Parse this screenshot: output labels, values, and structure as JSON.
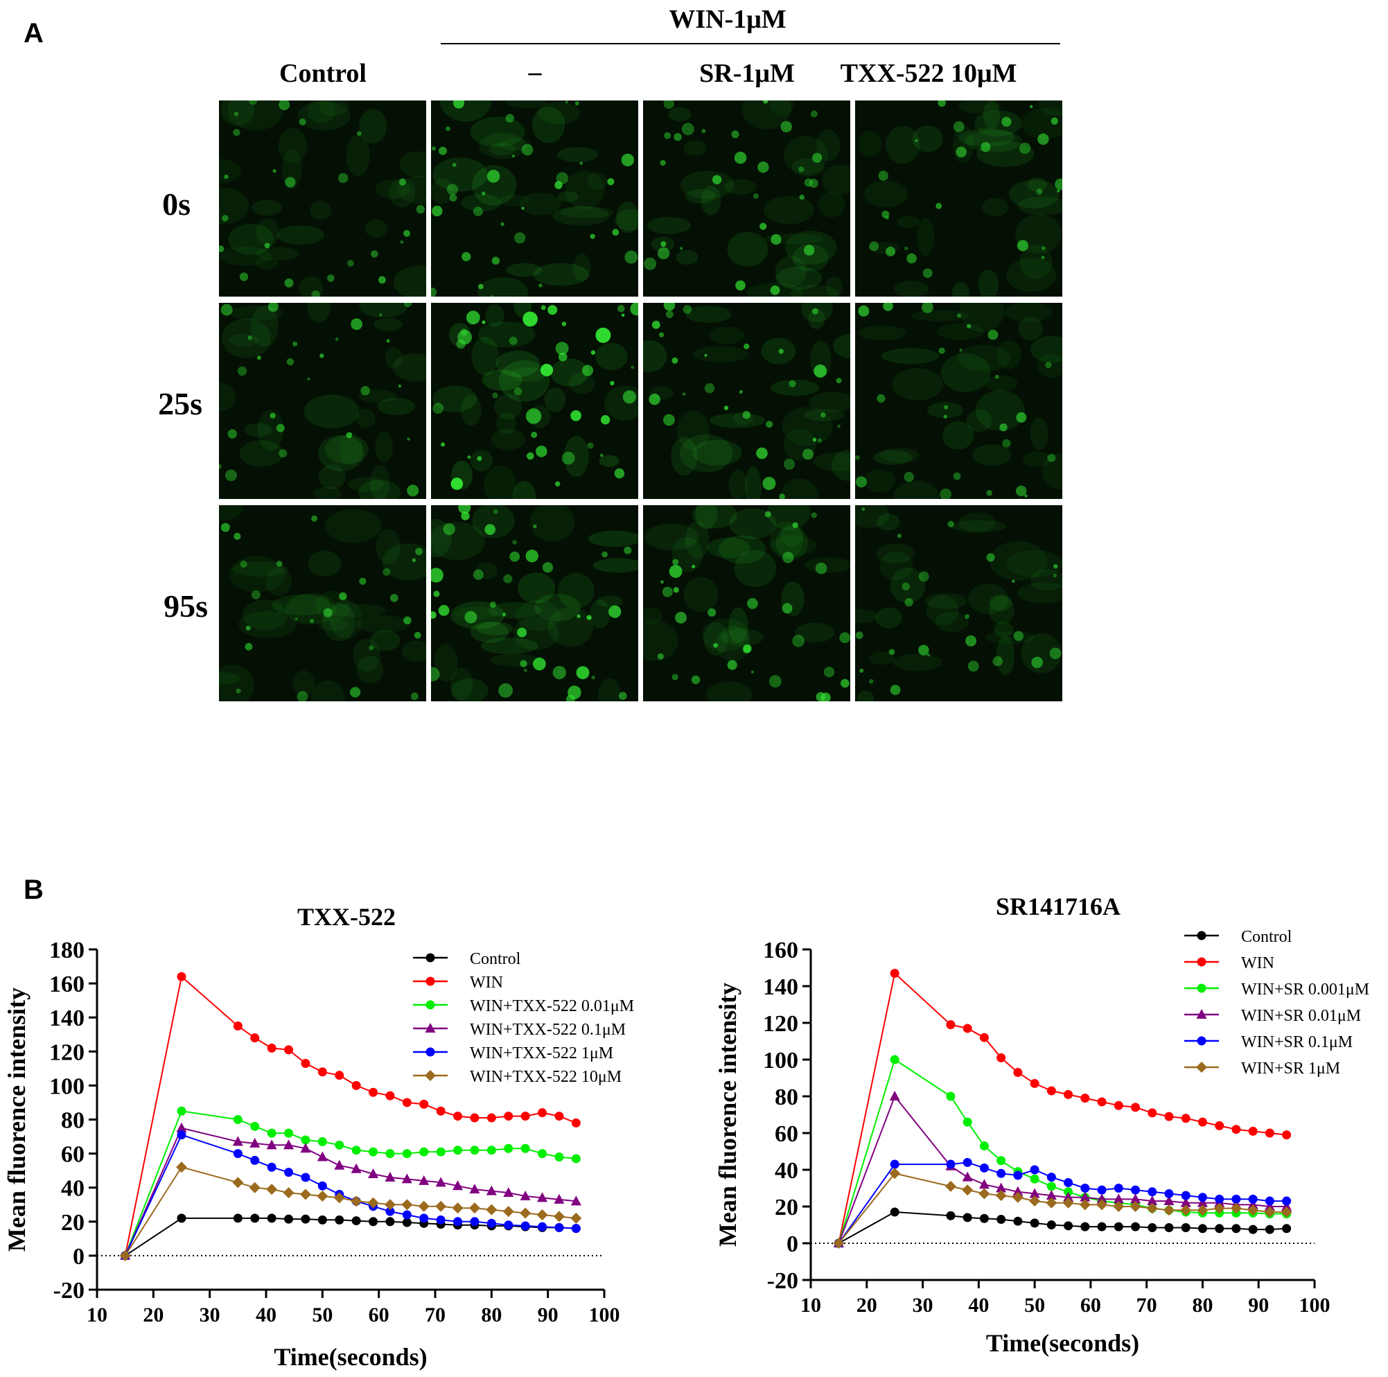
{
  "panel_a": {
    "letter": "A",
    "group_label": "WIN-1μM",
    "columns": [
      "Control",
      "–",
      "SR-1μM",
      "TXX-522 10μM"
    ],
    "rows": [
      "0s",
      "25s",
      "95s"
    ],
    "tile_color": "#33e833",
    "brightness": [
      [
        0.45,
        0.75,
        0.6,
        0.5
      ],
      [
        0.5,
        1.0,
        0.7,
        0.5
      ],
      [
        0.45,
        0.85,
        0.65,
        0.45
      ]
    ]
  },
  "panel_b": {
    "letter": "B"
  },
  "chart_data": [
    {
      "type": "line",
      "title": "TXX-522",
      "xlabel": "Time(seconds)",
      "ylabel": "Mean fluorence intensity",
      "xlim": [
        10,
        100
      ],
      "ylim": [
        -20,
        180
      ],
      "xticks": [
        10,
        20,
        30,
        40,
        50,
        60,
        70,
        80,
        90,
        100
      ],
      "yticks": [
        -20,
        0,
        20,
        40,
        60,
        80,
        100,
        120,
        140,
        160,
        180
      ],
      "baseline": 0,
      "legend_position": "top-right",
      "series": [
        {
          "name": "Control",
          "color": "#000000",
          "marker": "circle",
          "x": [
            15,
            25,
            35,
            38,
            41,
            44,
            47,
            50,
            53,
            56,
            59,
            62,
            65,
            68,
            71,
            74,
            77,
            80,
            83,
            86,
            89,
            92,
            95
          ],
          "y": [
            0,
            22,
            22,
            22,
            22,
            21.5,
            21.5,
            21,
            21,
            20.5,
            20,
            20,
            19.5,
            19,
            18.5,
            18,
            18,
            17.5,
            17.5,
            17,
            16.5,
            16.5,
            16
          ]
        },
        {
          "name": "WIN",
          "color": "#ff0000",
          "marker": "circle",
          "x": [
            15,
            25,
            35,
            38,
            41,
            44,
            47,
            50,
            53,
            56,
            59,
            62,
            65,
            68,
            71,
            74,
            77,
            80,
            83,
            86,
            89,
            92,
            95
          ],
          "y": [
            0,
            164,
            135,
            128,
            122,
            121,
            113,
            108,
            106,
            100,
            96,
            94,
            90,
            89,
            85,
            82,
            81,
            81,
            82,
            82,
            84,
            82,
            78
          ]
        },
        {
          "name": "WIN+TXX-522 0.01μM",
          "color": "#00ee00",
          "marker": "circle",
          "x": [
            15,
            25,
            35,
            38,
            41,
            44,
            47,
            50,
            53,
            56,
            59,
            62,
            65,
            68,
            71,
            74,
            77,
            80,
            83,
            86,
            89,
            92,
            95
          ],
          "y": [
            0,
            85,
            80,
            76,
            72,
            72,
            68,
            67,
            65,
            62,
            61,
            60,
            60,
            61,
            61,
            62,
            62,
            62,
            63,
            63,
            60,
            58,
            57
          ]
        },
        {
          "name": "WIN+TXX-522 0.1μM",
          "color": "#800080",
          "marker": "triangle",
          "x": [
            15,
            25,
            35,
            38,
            41,
            44,
            47,
            50,
            53,
            56,
            59,
            62,
            65,
            68,
            71,
            74,
            77,
            80,
            83,
            86,
            89,
            92,
            95
          ],
          "y": [
            0,
            75,
            67,
            66,
            65,
            65,
            63,
            58,
            53,
            51,
            48,
            46,
            45,
            44,
            43,
            41,
            39,
            38,
            37,
            35,
            34,
            33,
            32
          ]
        },
        {
          "name": "WIN+TXX-522 1μM",
          "color": "#0000ff",
          "marker": "circle",
          "x": [
            15,
            25,
            35,
            38,
            41,
            44,
            47,
            50,
            53,
            56,
            59,
            62,
            65,
            68,
            71,
            74,
            77,
            80,
            83,
            86,
            89,
            92,
            95
          ],
          "y": [
            0,
            71,
            60,
            56,
            52,
            49,
            46,
            41,
            36,
            32,
            29,
            26,
            24,
            22,
            21,
            20,
            20,
            19,
            18,
            17.5,
            17,
            16.5,
            16
          ]
        },
        {
          "name": "WIN+TXX-522 10μM",
          "color": "#9b6a1e",
          "marker": "diamond",
          "x": [
            15,
            25,
            35,
            38,
            41,
            44,
            47,
            50,
            53,
            56,
            59,
            62,
            65,
            68,
            71,
            74,
            77,
            80,
            83,
            86,
            89,
            92,
            95
          ],
          "y": [
            0,
            52,
            43,
            40,
            39,
            37,
            36,
            35,
            34,
            32,
            31,
            30,
            30,
            29,
            29,
            28,
            28,
            27,
            26,
            25,
            24,
            23,
            22
          ]
        }
      ]
    },
    {
      "type": "line",
      "title": "SR141716A",
      "xlabel": "Time(seconds)",
      "ylabel": "Mean fluorence intensity",
      "xlim": [
        10,
        100
      ],
      "ylim": [
        -20,
        160
      ],
      "xticks": [
        10,
        20,
        30,
        40,
        50,
        60,
        70,
        80,
        90,
        100
      ],
      "yticks": [
        -20,
        0,
        20,
        40,
        60,
        80,
        100,
        120,
        140,
        160
      ],
      "baseline": 0,
      "legend_position": "top-right",
      "series": [
        {
          "name": "Control",
          "color": "#000000",
          "marker": "circle",
          "x": [
            15,
            25,
            35,
            38,
            41,
            44,
            47,
            50,
            53,
            56,
            59,
            62,
            65,
            68,
            71,
            74,
            77,
            80,
            83,
            86,
            89,
            92,
            95
          ],
          "y": [
            0,
            17,
            15,
            14,
            13.5,
            13,
            12,
            11,
            10,
            9.5,
            9,
            9,
            9,
            9,
            8.5,
            8.5,
            8.5,
            8,
            8,
            8,
            7.5,
            7.5,
            8
          ]
        },
        {
          "name": "WIN",
          "color": "#ff0000",
          "marker": "circle",
          "x": [
            15,
            25,
            35,
            38,
            41,
            44,
            47,
            50,
            53,
            56,
            59,
            62,
            65,
            68,
            71,
            74,
            77,
            80,
            83,
            86,
            89,
            92,
            95
          ],
          "y": [
            0,
            147,
            119,
            117,
            112,
            101,
            93,
            87,
            83,
            81,
            79,
            77,
            75,
            74,
            71,
            69,
            68,
            66,
            64,
            62,
            61,
            60,
            59
          ]
        },
        {
          "name": "WIN+SR 0.001μM",
          "color": "#00ee00",
          "marker": "circle",
          "x": [
            15,
            25,
            35,
            38,
            41,
            44,
            47,
            50,
            53,
            56,
            59,
            62,
            65,
            68,
            71,
            74,
            77,
            80,
            83,
            86,
            89,
            92,
            95
          ],
          "y": [
            0,
            100,
            80,
            66,
            53,
            45,
            39,
            35,
            31,
            28,
            25,
            23,
            22,
            21,
            19,
            18,
            17,
            16.5,
            16.5,
            16.5,
            16.5,
            16,
            16
          ]
        },
        {
          "name": "WIN+SR 0.01μM",
          "color": "#800080",
          "marker": "triangle",
          "x": [
            15,
            25,
            35,
            38,
            41,
            44,
            47,
            50,
            53,
            56,
            59,
            62,
            65,
            68,
            71,
            74,
            77,
            80,
            83,
            86,
            89,
            92,
            95
          ],
          "y": [
            0,
            80,
            42,
            36,
            32,
            30,
            28,
            27,
            26,
            25,
            25,
            24,
            24,
            24,
            23,
            23,
            22,
            22,
            22,
            21,
            21,
            20,
            20
          ]
        },
        {
          "name": "WIN+SR 0.1μM",
          "color": "#0000ff",
          "marker": "circle",
          "x": [
            15,
            25,
            35,
            38,
            41,
            44,
            47,
            50,
            53,
            56,
            59,
            62,
            65,
            68,
            71,
            74,
            77,
            80,
            83,
            86,
            89,
            92,
            95
          ],
          "y": [
            0,
            43,
            43,
            44,
            41,
            38,
            37,
            40,
            36,
            33,
            30,
            29,
            30,
            29,
            28,
            27,
            26,
            25,
            24,
            24,
            24,
            23,
            23
          ]
        },
        {
          "name": "WIN+SR 1μM",
          "color": "#9b6a1e",
          "marker": "diamond",
          "x": [
            15,
            25,
            35,
            38,
            41,
            44,
            47,
            50,
            53,
            56,
            59,
            62,
            65,
            68,
            71,
            74,
            77,
            80,
            83,
            86,
            89,
            92,
            95
          ],
          "y": [
            0,
            38,
            31,
            29,
            27,
            26,
            25,
            23,
            22,
            22,
            21,
            21,
            20,
            20,
            19,
            18,
            18,
            18,
            19,
            19,
            18,
            17,
            17
          ]
        }
      ]
    }
  ]
}
